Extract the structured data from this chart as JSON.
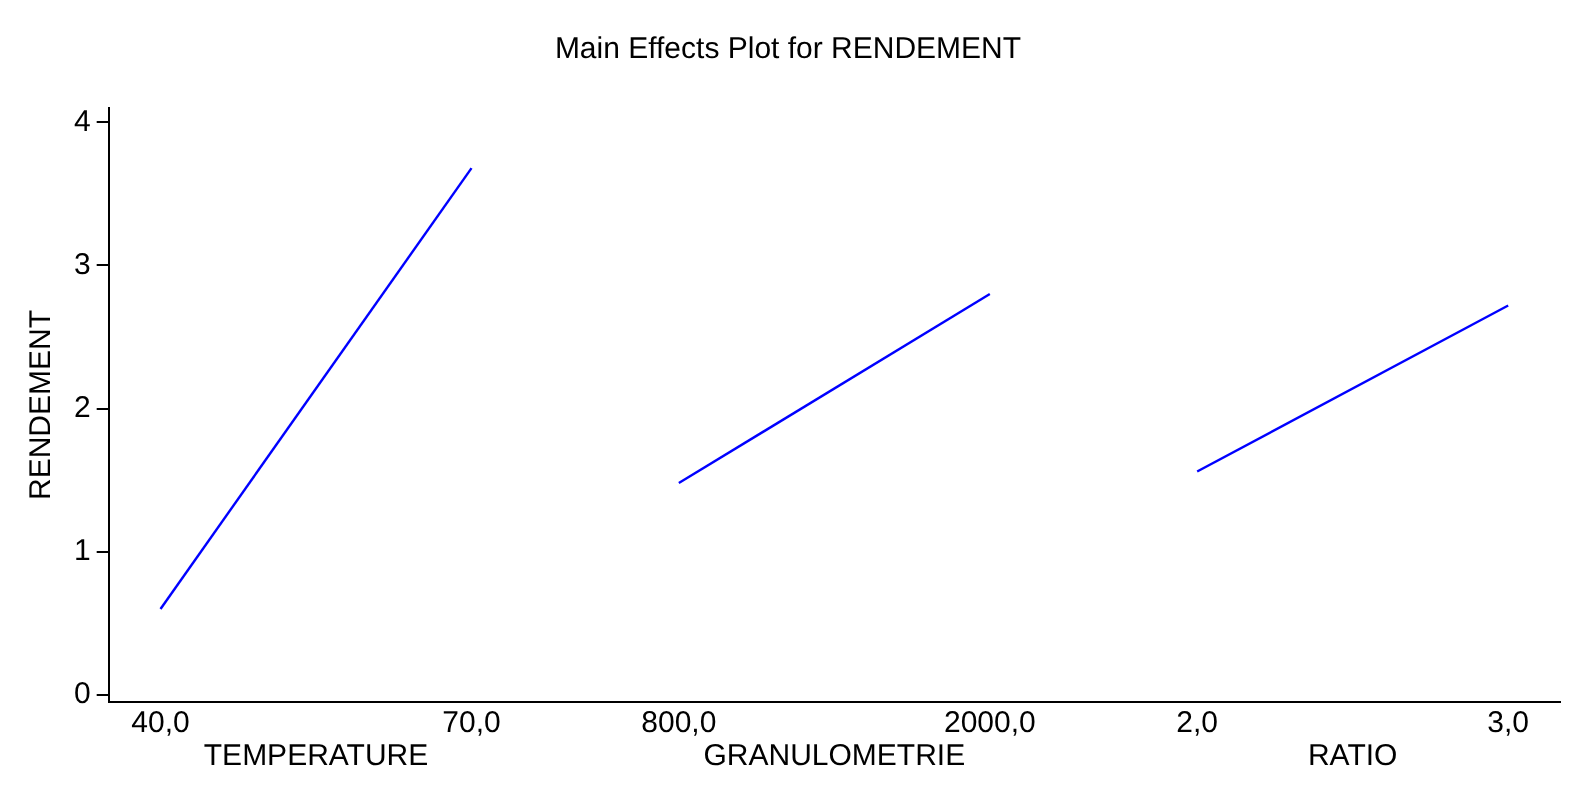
{
  "chart_data": {
    "type": "line",
    "title": "Main Effects Plot for RENDEMENT",
    "ylabel": "RENDEMENT",
    "categories": [
      "40,0",
      null,
      null,
      "70,0",
      null,
      "800,0",
      null,
      null,
      "2000,0",
      null,
      "2,0",
      null,
      null,
      "3,0"
    ],
    "series": [
      {
        "color": "#0000ff",
        "values": [
          0.6,
          null,
          null,
          3.68,
          null,
          null,
          null,
          null,
          null,
          null,
          null,
          null,
          null,
          null
        ]
      },
      {
        "color": "#0000ff",
        "values": [
          null,
          null,
          null,
          null,
          null,
          1.48,
          null,
          null,
          2.8,
          null,
          null,
          null,
          null,
          null
        ]
      },
      {
        "color": "#0000ff",
        "values": [
          null,
          null,
          null,
          null,
          null,
          null,
          null,
          null,
          null,
          null,
          1.56,
          null,
          null,
          2.72
        ]
      }
    ],
    "annotations": [
      "TEMPERATURE",
      "GRANULOMETRIE",
      "RATIO"
    ],
    "ylim": [
      -0.05,
      4.1
    ],
    "yticks": [
      0,
      1,
      2,
      3,
      4
    ],
    "grid": false,
    "legend": false,
    "marker": "none",
    "line_style": "solid"
  }
}
